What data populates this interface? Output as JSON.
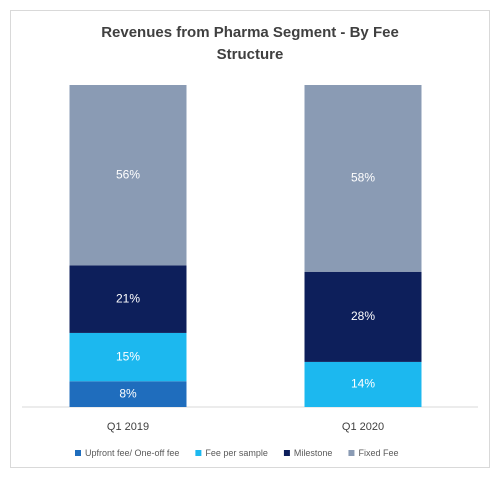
{
  "chart_data": {
    "type": "stacked_bar",
    "title": "Revenues from Pharma Segment - By Fee Structure",
    "categories": [
      "Q1 2019",
      "Q1 2020"
    ],
    "series": [
      {
        "name": "Upfront fee/ One-off fee",
        "color": "#1f6dbd",
        "values": [
          8,
          null
        ],
        "value_labels": [
          "8%",
          null
        ]
      },
      {
        "name": "Fee per sample",
        "color": "#1cb8ef",
        "values": [
          15,
          14
        ],
        "value_labels": [
          "15%",
          "14%"
        ]
      },
      {
        "name": "Milestone",
        "color": "#0d1f5b",
        "values": [
          21,
          28
        ],
        "value_labels": [
          "21%",
          "28%"
        ]
      },
      {
        "name": "Fixed Fee",
        "color": "#8a9bb4",
        "values": [
          56,
          58
        ],
        "value_labels": [
          "56%",
          "58%"
        ]
      }
    ],
    "legend": "bottom"
  }
}
